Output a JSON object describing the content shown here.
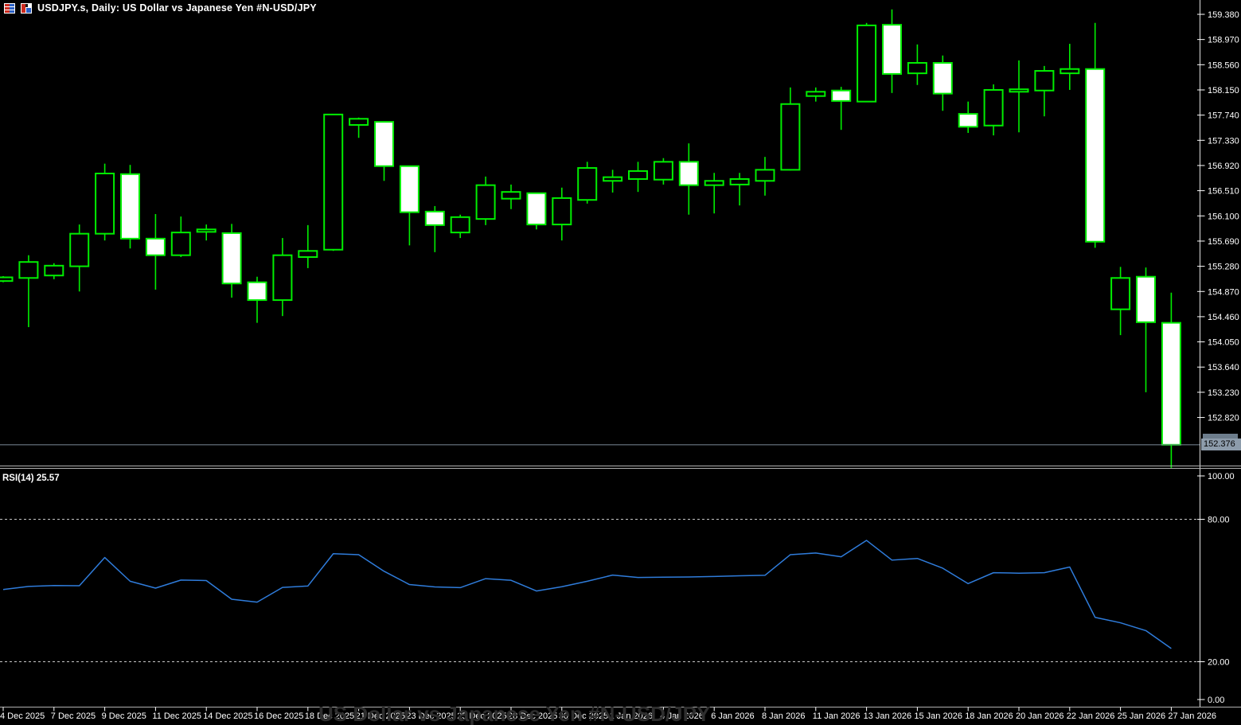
{
  "window": {
    "title": "USDJPY.s, Daily:  US Dollar vs  Japanese Yen #N-USD/JPY",
    "icons": [
      {
        "name": "quotes-table-icon"
      },
      {
        "name": "chart-window-icon"
      }
    ]
  },
  "chart_data": {
    "type": "candlestick",
    "symbol": "USDJPY.s",
    "timeframe": "Daily",
    "description": "US Dollar vs Japanese Yen #N-USD/JPY",
    "watermark": "US Dollar vs  Japanese Yen #N-USD/JPY",
    "grid": false,
    "legend_position": "none",
    "price_axis": {
      "ticks": [
        "159.380",
        "158.970",
        "158.560",
        "158.150",
        "157.740",
        "157.330",
        "156.920",
        "156.510",
        "156.100",
        "155.690",
        "155.280",
        "154.870",
        "154.460",
        "154.050",
        "153.640",
        "153.230",
        "152.820"
      ],
      "tick_interval": 0.41
    },
    "time_axis": {
      "labels": [
        "4 Dec 2025",
        "7 Dec 2025",
        "9 Dec 2025",
        "11 Dec 2025",
        "14 Dec 2025",
        "16 Dec 2025",
        "18 Dec 2025",
        "21 Dec 2025",
        "23 Dec 2025",
        "25 Dec 2025",
        "28 Dec 2025",
        "30 Dec 2025",
        "1 Jan 2026",
        "4 Jan 2026",
        "6 Jan 2026",
        "8 Jan 2026",
        "11 Jan 2026",
        "13 Jan 2026",
        "15 Jan 2026",
        "18 Jan 2026",
        "20 Jan 2026",
        "22 Jan 2026",
        "25 Jan 2026",
        "27 Jan 2026"
      ],
      "candles_per_label": 2
    },
    "current_price": {
      "label": "152.376",
      "value": 152.376
    },
    "candles": [
      {
        "o": 155.04,
        "h": 155.12,
        "l": 155.02,
        "c": 155.1
      },
      {
        "o": 155.09,
        "h": 155.46,
        "l": 154.29,
        "c": 155.35
      },
      {
        "o": 155.13,
        "h": 155.33,
        "l": 155.07,
        "c": 155.29
      },
      {
        "o": 155.28,
        "h": 155.96,
        "l": 154.87,
        "c": 155.81
      },
      {
        "o": 155.81,
        "h": 156.95,
        "l": 155.7,
        "c": 156.79
      },
      {
        "o": 156.78,
        "h": 156.93,
        "l": 155.57,
        "c": 155.73
      },
      {
        "o": 155.73,
        "h": 156.13,
        "l": 154.9,
        "c": 155.46
      },
      {
        "o": 155.46,
        "h": 156.09,
        "l": 155.43,
        "c": 155.83
      },
      {
        "o": 155.84,
        "h": 155.96,
        "l": 155.7,
        "c": 155.88
      },
      {
        "o": 155.82,
        "h": 155.97,
        "l": 154.77,
        "c": 155.0
      },
      {
        "o": 155.02,
        "h": 155.11,
        "l": 154.36,
        "c": 154.73
      },
      {
        "o": 154.73,
        "h": 155.74,
        "l": 154.47,
        "c": 155.46
      },
      {
        "o": 155.43,
        "h": 155.95,
        "l": 155.25,
        "c": 155.53
      },
      {
        "o": 155.55,
        "h": 157.76,
        "l": 155.53,
        "c": 157.75
      },
      {
        "o": 157.58,
        "h": 157.7,
        "l": 157.37,
        "c": 157.68
      },
      {
        "o": 157.63,
        "h": 157.64,
        "l": 156.67,
        "c": 156.91
      },
      {
        "o": 156.91,
        "h": 156.91,
        "l": 155.62,
        "c": 156.16
      },
      {
        "o": 156.17,
        "h": 156.26,
        "l": 155.51,
        "c": 155.95
      },
      {
        "o": 155.83,
        "h": 156.12,
        "l": 155.74,
        "c": 156.08
      },
      {
        "o": 156.05,
        "h": 156.74,
        "l": 155.95,
        "c": 156.6
      },
      {
        "o": 156.38,
        "h": 156.61,
        "l": 156.21,
        "c": 156.49
      },
      {
        "o": 156.47,
        "h": 156.47,
        "l": 155.88,
        "c": 155.96
      },
      {
        "o": 155.96,
        "h": 156.56,
        "l": 155.7,
        "c": 156.39
      },
      {
        "o": 156.36,
        "h": 156.98,
        "l": 156.3,
        "c": 156.88
      },
      {
        "o": 156.67,
        "h": 156.85,
        "l": 156.48,
        "c": 156.73
      },
      {
        "o": 156.7,
        "h": 156.98,
        "l": 156.49,
        "c": 156.83
      },
      {
        "o": 156.69,
        "h": 157.04,
        "l": 156.61,
        "c": 156.98
      },
      {
        "o": 156.98,
        "h": 157.28,
        "l": 156.12,
        "c": 156.6
      },
      {
        "o": 156.6,
        "h": 156.8,
        "l": 156.14,
        "c": 156.67
      },
      {
        "o": 156.61,
        "h": 156.8,
        "l": 156.27,
        "c": 156.7
      },
      {
        "o": 156.67,
        "h": 157.06,
        "l": 156.43,
        "c": 156.85
      },
      {
        "o": 156.85,
        "h": 158.19,
        "l": 156.84,
        "c": 157.92
      },
      {
        "o": 158.05,
        "h": 158.19,
        "l": 157.96,
        "c": 158.12
      },
      {
        "o": 158.14,
        "h": 158.2,
        "l": 157.5,
        "c": 157.97
      },
      {
        "o": 157.96,
        "h": 159.24,
        "l": 157.95,
        "c": 159.2
      },
      {
        "o": 159.21,
        "h": 159.46,
        "l": 158.1,
        "c": 158.41
      },
      {
        "o": 158.42,
        "h": 158.89,
        "l": 158.23,
        "c": 158.59
      },
      {
        "o": 158.59,
        "h": 158.71,
        "l": 157.81,
        "c": 158.09
      },
      {
        "o": 157.76,
        "h": 157.96,
        "l": 157.45,
        "c": 157.55
      },
      {
        "o": 157.57,
        "h": 158.24,
        "l": 157.41,
        "c": 158.15
      },
      {
        "o": 158.12,
        "h": 158.63,
        "l": 157.46,
        "c": 158.16
      },
      {
        "o": 158.14,
        "h": 158.54,
        "l": 157.72,
        "c": 158.46
      },
      {
        "o": 158.42,
        "h": 158.9,
        "l": 158.15,
        "c": 158.49
      },
      {
        "o": 158.49,
        "h": 159.24,
        "l": 155.58,
        "c": 155.68
      },
      {
        "o": 154.58,
        "h": 155.27,
        "l": 154.16,
        "c": 155.09
      },
      {
        "o": 155.11,
        "h": 155.26,
        "l": 153.23,
        "c": 154.37
      },
      {
        "o": 154.36,
        "h": 154.85,
        "l": 152.0,
        "c": 152.376
      }
    ],
    "rsi": {
      "label": "RSI(14) 25.57",
      "period": 14,
      "current": 25.57,
      "levels": [
        80,
        20
      ],
      "axis_labels": [
        "100.00",
        "80.00",
        "20.00",
        "0.00"
      ],
      "axis_values": [
        100,
        80,
        20,
        0
      ],
      "values": [
        50.4,
        51.7,
        52.1,
        52.0,
        63.9,
        53.9,
        51.0,
        54.4,
        54.2,
        46.3,
        45.1,
        51.3,
        51.9,
        65.5,
        65.1,
        58.1,
        52.5,
        51.5,
        51.2,
        55.0,
        54.3,
        49.8,
        51.6,
        53.9,
        56.5,
        55.5,
        55.6,
        55.7,
        55.9,
        56.2,
        56.4,
        65.1,
        65.8,
        64.2,
        71.1,
        62.8,
        63.5,
        59.4,
        52.9,
        57.5,
        57.3,
        57.5,
        59.9,
        38.7,
        36.4,
        33.1,
        25.57
      ]
    },
    "colors": {
      "background": "#000000",
      "candle_outline": "#00ee00",
      "bull_fill": "#000000",
      "bear_fill": "#ffffff",
      "rsi_line": "#2f7cdb",
      "level_dash": "#c8c8c8",
      "axis_text": "#ffffff",
      "border": "#e0e0e0",
      "separator": "#b0b0b0",
      "price_line": "#7d8b99",
      "price_label_bg": "#8d9cab"
    }
  }
}
